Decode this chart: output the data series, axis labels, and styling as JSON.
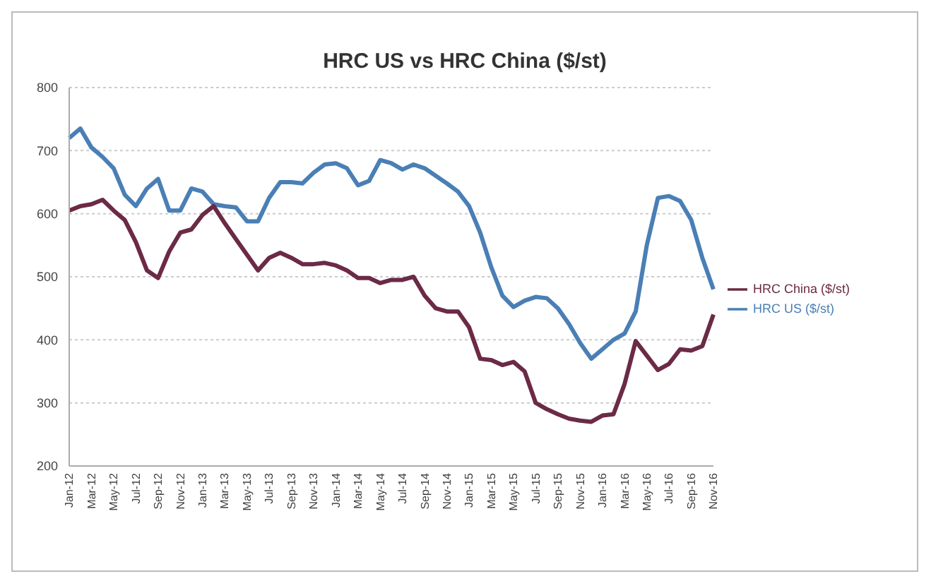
{
  "chart_data": {
    "type": "line",
    "title": "HRC US vs HRC China ($/st)",
    "categories": [
      "Jan-12",
      null,
      "Mar-12",
      null,
      "May-12",
      null,
      "Jul-12",
      null,
      "Sep-12",
      null,
      "Nov-12",
      null,
      "Jan-13",
      null,
      "Mar-13",
      null,
      "May-13",
      null,
      "Jul-13",
      null,
      "Sep-13",
      null,
      "Nov-13",
      null,
      "Jan-14",
      null,
      "Mar-14",
      null,
      "May-14",
      null,
      "Jul-14",
      null,
      "Sep-14",
      null,
      "Nov-14",
      null,
      "Jan-15",
      null,
      "Mar-15",
      null,
      "May-15",
      null,
      "Jul-15",
      null,
      "Sep-15",
      null,
      "Nov-15",
      null,
      "Jan-16",
      null,
      "Mar-16",
      null,
      "May-16",
      null,
      "Jul-16",
      null,
      "Sep-16",
      null,
      "Nov-16"
    ],
    "series": [
      {
        "name": "HRC US ($/st)",
        "color": "#4a7fb5",
        "values": [
          720,
          735,
          705,
          690,
          672,
          630,
          612,
          640,
          655,
          605,
          605,
          640,
          635,
          615,
          612,
          610,
          588,
          588,
          625,
          650,
          650,
          648,
          665,
          678,
          680,
          672,
          645,
          652,
          685,
          680,
          670,
          678,
          672,
          660,
          648,
          635,
          612,
          570,
          515,
          470,
          452,
          462,
          468,
          466,
          450,
          425,
          395,
          370,
          385,
          400,
          410,
          445,
          550,
          625,
          628,
          620,
          590,
          530,
          480
        ]
      },
      {
        "name": "HRC China ($/st)",
        "color": "#6b2a45",
        "values": [
          605,
          612,
          615,
          622,
          605,
          590,
          555,
          510,
          498,
          540,
          570,
          575,
          598,
          612,
          585,
          560,
          535,
          510,
          530,
          538,
          530,
          520,
          520,
          522,
          518,
          510,
          498,
          498,
          490,
          495,
          495,
          500,
          470,
          450,
          445,
          445,
          420,
          370,
          368,
          360,
          365,
          350,
          300,
          290,
          282,
          275,
          272,
          270,
          280,
          282,
          330,
          398,
          375,
          352,
          362,
          385,
          383,
          390,
          440
        ]
      }
    ],
    "ylim": [
      200,
      800
    ],
    "yticks": [
      200,
      300,
      400,
      500,
      600,
      700,
      800
    ],
    "grid": "y",
    "legend": "right",
    "marker": "none",
    "line_style": "solid"
  }
}
